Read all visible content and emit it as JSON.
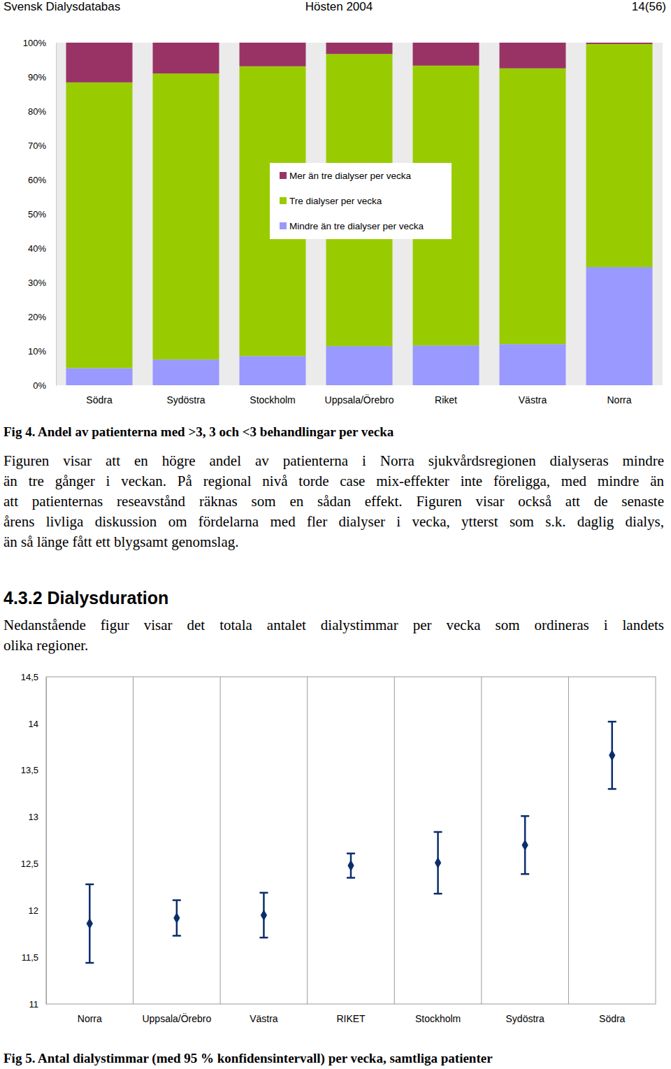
{
  "header": {
    "left": "Svensk Dialysdatabas",
    "center": "Hösten 2004",
    "right": "14(56)"
  },
  "chart_data": [
    {
      "type": "bar",
      "stacked": true,
      "title": "Fig 4. Andel av patienterna med >3, 3 och <3 behandlingar per vecka",
      "categories": [
        "Södra",
        "Sydöstra",
        "Stockholm",
        "Uppsala/Örebro",
        "Riket",
        "Västra",
        "Norra"
      ],
      "series": [
        {
          "name": "Mer än tre dialyser per vecka",
          "color": "#993366",
          "values": [
            11.6,
            9.0,
            6.9,
            3.3,
            6.7,
            7.5,
            0.4
          ]
        },
        {
          "name": "Tre dialyser per vecka",
          "color": "#99cc00",
          "values": [
            83.4,
            83.5,
            84.6,
            85.3,
            81.7,
            80.5,
            65.1
          ]
        },
        {
          "name": "Mindre än tre dialyser per vecka",
          "color": "#9999ff",
          "values": [
            5.0,
            7.5,
            8.5,
            11.4,
            11.6,
            12.0,
            34.5
          ]
        }
      ],
      "ylim": [
        0,
        100
      ],
      "yticks": [
        {
          "value": 0,
          "label": "0%"
        },
        {
          "value": 10,
          "label": "10%"
        },
        {
          "value": 20,
          "label": "20%"
        },
        {
          "value": 30,
          "label": "30%"
        },
        {
          "value": 40,
          "label": "40%"
        },
        {
          "value": 50,
          "label": "50%"
        },
        {
          "value": 60,
          "label": "60%"
        },
        {
          "value": 70,
          "label": "70%"
        },
        {
          "value": 80,
          "label": "80%"
        },
        {
          "value": 90,
          "label": "90%"
        },
        {
          "value": 100,
          "label": "100%"
        }
      ],
      "legend": "top"
    },
    {
      "type": "scatter",
      "marker": "diamond",
      "color": "#0b2d6b",
      "title": "Fig 5. Antal dialystimmar (med 95 % konfidensintervall) per vecka, samtliga patienter",
      "categories": [
        "Norra",
        "Uppsala/Örebro",
        "Västra",
        "RIKET",
        "Stockholm",
        "Sydöstra",
        "Södra"
      ],
      "values": [
        11.86,
        11.92,
        11.95,
        12.48,
        12.51,
        12.7,
        13.66
      ],
      "errors": [
        0.42,
        0.19,
        0.24,
        0.13,
        0.33,
        0.31,
        0.36
      ],
      "ylim": [
        11,
        14.5
      ],
      "yticks": [
        11,
        {
          "value": 11.5,
          "label": "11,5"
        },
        12,
        {
          "value": 12.5,
          "label": "12,5"
        },
        13,
        {
          "value": 13.5,
          "label": "13,5"
        },
        14,
        {
          "value": 14.5,
          "label": "14,5"
        }
      ]
    }
  ],
  "paragraph1": [
    "Figuren visar att en högre andel av patienterna i Norra sjukvårdsregionen dialyseras mindre",
    "än tre gånger i veckan. På regional nivå torde case mix-effekter inte föreligga, med mindre än",
    "att patienternas reseavstånd räknas som en sådan effekt. Figuren visar också att de senaste",
    "årens livliga diskussion om fördelarna med fler dialyser i vecka, ytterst som s.k. daglig dialys,",
    "än så länge fått ett blygsamt genomslag."
  ],
  "heading": "4.3.2 Dialysduration",
  "paragraph2": [
    "Nedanstående figur visar det totala antalet dialystimmar per vecka som ordineras i landets",
    "olika regioner."
  ]
}
